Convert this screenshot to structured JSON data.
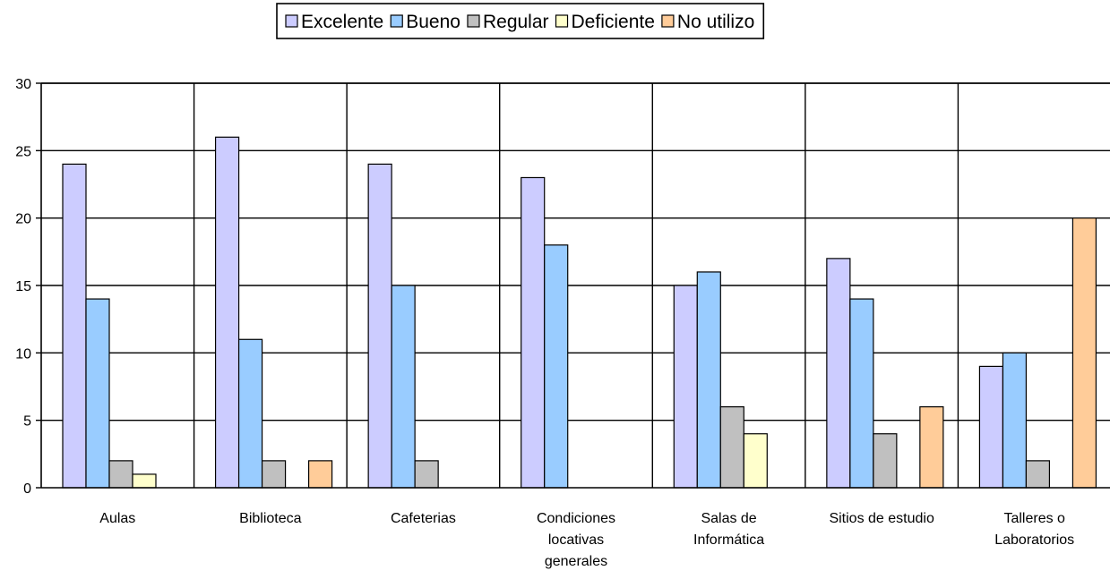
{
  "chart_data": {
    "type": "bar",
    "categories": [
      [
        "Aulas"
      ],
      [
        "Biblioteca"
      ],
      [
        "Cafeterias"
      ],
      [
        "Condiciones",
        "locativas",
        "generales"
      ],
      [
        "Salas de",
        "Informática"
      ],
      [
        "Sitios de estudio"
      ],
      [
        "Talleres o",
        "Laboratorios"
      ]
    ],
    "series": [
      {
        "name": "Excelente",
        "color": "#CCCCFF",
        "values": [
          24,
          26,
          24,
          23,
          15,
          17,
          9
        ]
      },
      {
        "name": "Bueno",
        "color": "#99CCFF",
        "values": [
          14,
          11,
          15,
          18,
          16,
          14,
          10
        ]
      },
      {
        "name": "Regular",
        "color": "#C0C0C0",
        "values": [
          2,
          2,
          2,
          0,
          6,
          4,
          2
        ]
      },
      {
        "name": "Deficiente",
        "color": "#FFFFCC",
        "values": [
          1,
          0,
          0,
          0,
          4,
          0,
          0
        ]
      },
      {
        "name": "No utilizo",
        "color": "#FFCC99",
        "values": [
          0,
          2,
          0,
          0,
          0,
          6,
          20
        ]
      }
    ],
    "ylim": [
      0,
      30
    ],
    "yticks": [
      0,
      5,
      10,
      15,
      20,
      25,
      30
    ],
    "grid": true,
    "legend_position": "top"
  }
}
